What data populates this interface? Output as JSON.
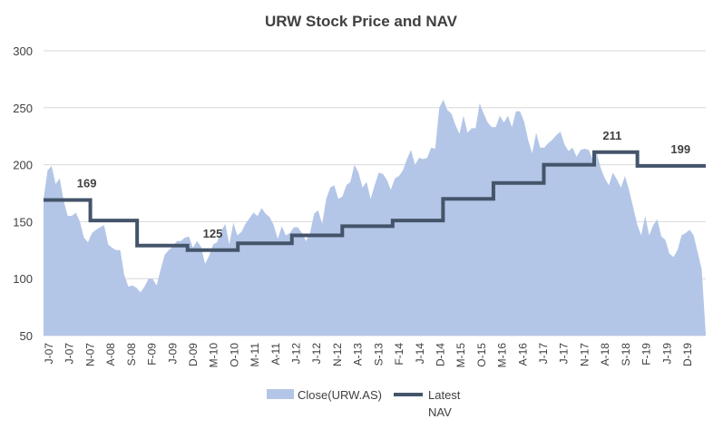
{
  "chart_data": {
    "type": "area",
    "title": "URW Stock Price and NAV",
    "ylim": [
      50,
      300
    ],
    "yticks": [
      "300",
      "250",
      "200",
      "150",
      "100",
      "50"
    ],
    "grid": true,
    "legend_position": "bottom",
    "x_labels": [
      "J-07",
      "J-07",
      "N-07",
      "A-08",
      "S-08",
      "F-09",
      "J-09",
      "D-09",
      "M-10",
      "O-10",
      "M-11",
      "A-11",
      "J-12",
      "J-12",
      "N-12",
      "A-13",
      "S-13",
      "F-14",
      "J-14",
      "D-14",
      "M-15",
      "O-15",
      "M-16",
      "A-16",
      "J-17",
      "J-17",
      "N-17",
      "A-18",
      "S-18",
      "F-19",
      "J-19",
      "D-19"
    ],
    "series": [
      {
        "name": "Close(URW.AS)",
        "type": "area",
        "color": "#b4c6e7",
        "values": [
          170,
          195,
          199,
          183,
          188,
          168,
          155,
          155,
          158,
          150,
          136,
          132,
          140,
          143,
          145,
          147,
          130,
          127,
          125,
          125,
          103,
          93,
          94,
          92,
          88,
          93,
          100,
          100,
          94,
          108,
          121,
          125,
          128,
          133,
          133,
          136,
          137,
          127,
          133,
          128,
          113,
          120,
          130,
          132,
          142,
          148,
          130,
          149,
          138,
          141,
          148,
          153,
          158,
          155,
          162,
          157,
          154,
          147,
          135,
          146,
          138,
          140,
          145,
          145,
          140,
          133,
          140,
          157,
          160,
          148,
          170,
          180,
          182,
          170,
          172,
          182,
          185,
          200,
          193,
          180,
          185,
          170,
          182,
          193,
          192,
          187,
          178,
          188,
          190,
          195,
          205,
          213,
          200,
          206,
          205,
          206,
          215,
          214,
          250,
          257,
          248,
          245,
          235,
          227,
          243,
          228,
          232,
          232,
          254,
          245,
          237,
          233,
          233,
          243,
          237,
          243,
          233,
          247,
          247,
          238,
          222,
          210,
          228,
          215,
          215,
          219,
          222,
          226,
          229,
          218,
          212,
          215,
          207,
          213,
          214,
          213,
          205,
          210,
          197,
          188,
          182,
          193,
          187,
          180,
          190,
          178,
          163,
          148,
          138,
          155,
          138,
          147,
          152,
          137,
          134,
          122,
          119,
          125,
          138,
          140,
          143,
          138,
          123,
          108,
          51
        ]
      },
      {
        "name": "Latest NAV",
        "type": "step",
        "color": "#44546a",
        "values": [
          {
            "from": 0,
            "to": 6.5,
            "value": 169
          },
          {
            "from": 6.5,
            "to": 13,
            "value": 151
          },
          {
            "from": 13,
            "to": 20,
            "value": 129
          },
          {
            "from": 20,
            "to": 27,
            "value": 125
          },
          {
            "from": 27,
            "to": 34.5,
            "value": 131
          },
          {
            "from": 34.5,
            "to": 41.5,
            "value": 138
          },
          {
            "from": 41.5,
            "to": 48.5,
            "value": 146
          },
          {
            "from": 48.5,
            "to": 55.5,
            "value": 151
          },
          {
            "from": 55.5,
            "to": 62.5,
            "value": 170
          },
          {
            "from": 62.5,
            "to": 69.5,
            "value": 184
          },
          {
            "from": 69.5,
            "to": 76.5,
            "value": 200
          },
          {
            "from": 76.5,
            "to": 82.5,
            "value": 211
          },
          {
            "from": 82.5,
            "to": 92,
            "value": 199
          }
        ]
      }
    ],
    "data_labels": [
      {
        "text": "169",
        "x": 6,
        "value": 169
      },
      {
        "text": "125",
        "x": 23.5,
        "value": 125
      },
      {
        "text": "211",
        "x": 79,
        "value": 211
      },
      {
        "text": "199",
        "x": 88.5,
        "value": 199
      }
    ],
    "x_domain": [
      0,
      92
    ]
  },
  "legend": {
    "area_label": "Close(URW.AS)",
    "line_label_1": "Latest",
    "line_label_2": "NAV"
  }
}
